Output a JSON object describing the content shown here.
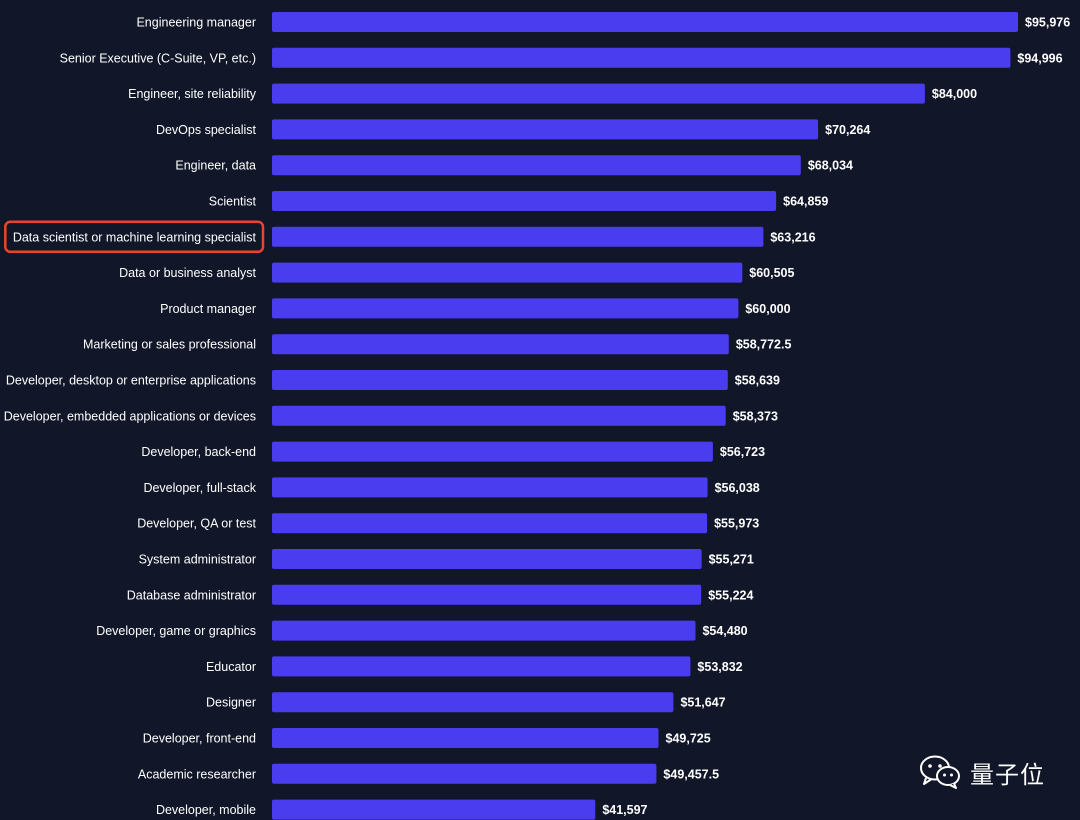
{
  "chart_data": {
    "type": "bar",
    "orientation": "horizontal",
    "categories": [
      "Engineering manager",
      "Senior Executive (C-Suite, VP, etc.)",
      "Engineer, site reliability",
      "DevOps specialist",
      "Engineer, data",
      "Scientist",
      "Data scientist or machine learning specialist",
      "Data or business analyst",
      "Product manager",
      "Marketing or sales professional",
      "Developer, desktop or enterprise applications",
      "Developer, embedded applications or devices",
      "Developer, back-end",
      "Developer, full-stack",
      "Developer, QA or test",
      "System administrator",
      "Database administrator",
      "Developer, game or graphics",
      "Educator",
      "Designer",
      "Developer, front-end",
      "Academic researcher",
      "Developer, mobile"
    ],
    "values": [
      95976,
      94996,
      84000,
      70264,
      68034,
      64859,
      63216,
      60505,
      60000,
      58772.5,
      58639,
      58373,
      56723,
      56038,
      55973,
      55271,
      55224,
      54480,
      53832,
      51647,
      49725,
      49457.5,
      41597
    ],
    "value_labels": [
      "$95,976",
      "$94,996",
      "$84,000",
      "$70,264",
      "$68,034",
      "$64,859",
      "$63,216",
      "$60,505",
      "$60,000",
      "$58,772.5",
      "$58,639",
      "$58,373",
      "$56,723",
      "$56,038",
      "$55,973",
      "$55,271",
      "$55,224",
      "$54,480",
      "$53,832",
      "$51,647",
      "$49,725",
      "$49,457.5",
      "$41,597"
    ],
    "highlighted_category": "Data scientist or machine learning specialist",
    "title": "",
    "xlabel": "",
    "ylabel": "",
    "xlim": [
      0,
      95976
    ],
    "grid": false,
    "legend": "none"
  },
  "colors": {
    "background": "#111628",
    "bar": "#4a3df0",
    "text": "#ffffff",
    "highlight": "#e8452f"
  },
  "watermark": {
    "text": "量子位",
    "icon": "wechat-icon"
  }
}
